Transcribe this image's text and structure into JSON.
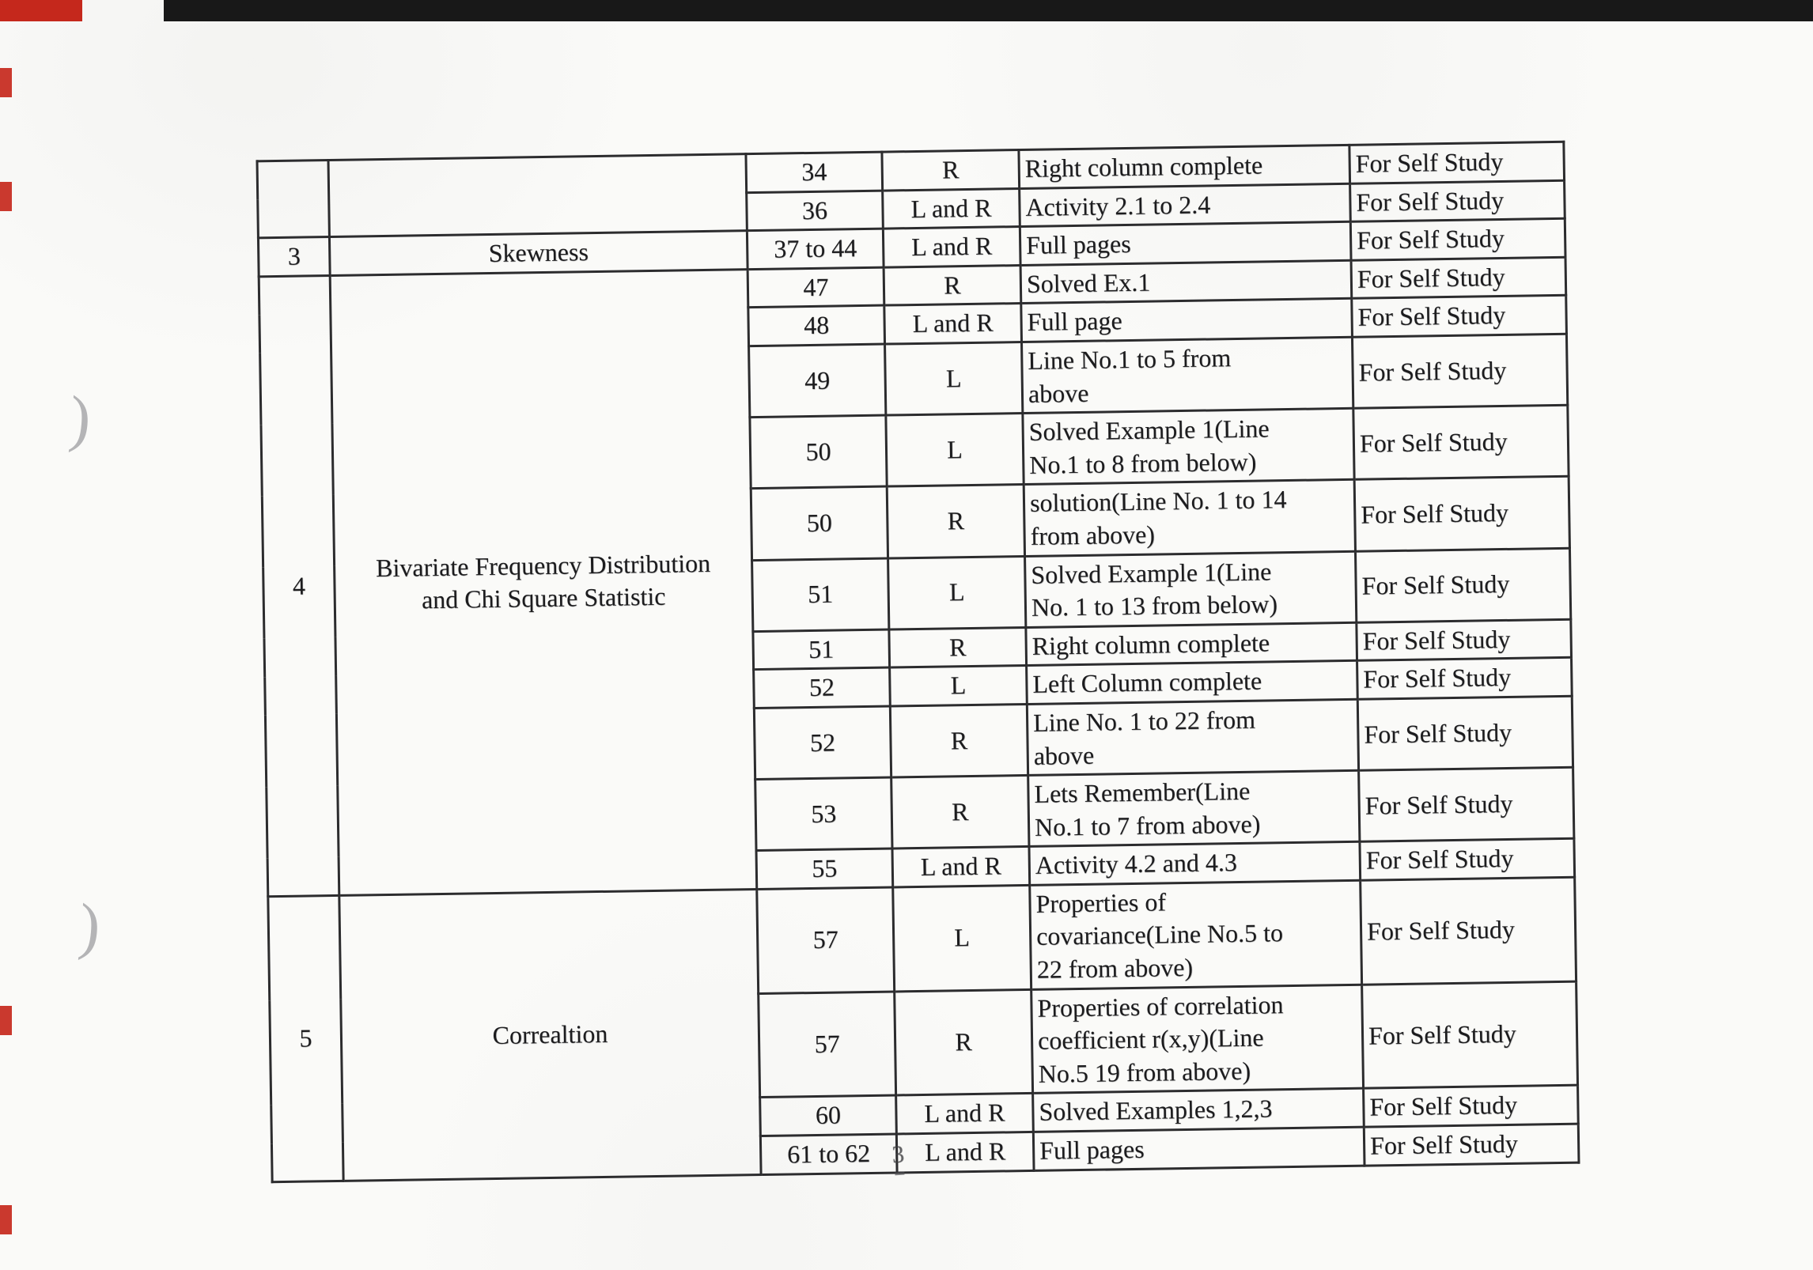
{
  "artifacts": {
    "top_bar_color": "#181818",
    "red_mark_color": "#c5281c",
    "paren_glyph": ")",
    "page_number": "3"
  },
  "table": {
    "columns": [
      "sr_no",
      "topic",
      "page_no",
      "side",
      "portion",
      "remark"
    ],
    "sections": [
      {
        "sr": "",
        "topic": "",
        "rows": [
          {
            "page": "34",
            "side": "R",
            "desc": "Right column complete",
            "remark": "For Self Study"
          },
          {
            "page": "36",
            "side": "L and R",
            "desc": "Activity 2.1 to 2.4",
            "remark": "For Self Study"
          }
        ]
      },
      {
        "sr": "3",
        "topic": "Skewness",
        "rows": [
          {
            "page": "37 to 44",
            "side": "L and R",
            "desc": "Full pages",
            "remark": "For Self Study"
          }
        ]
      },
      {
        "sr": "4",
        "topic": "Bivariate Frequency Distribution\nand Chi Square Statistic",
        "rows": [
          {
            "page": "47",
            "side": "R",
            "desc": "Solved Ex.1",
            "remark": "For Self Study"
          },
          {
            "page": "48",
            "side": "L and R",
            "desc": "Full page",
            "remark": "For Self Study"
          },
          {
            "page": "49",
            "side": "L",
            "desc": "Line No.1 to 5 from\nabove",
            "remark": "For Self Study"
          },
          {
            "page": "50",
            "side": "L",
            "desc": "Solved Example 1(Line\nNo.1 to 8 from below)",
            "remark": "For Self Study"
          },
          {
            "page": "50",
            "side": "R",
            "desc": "solution(Line No. 1 to 14\nfrom above)",
            "remark": "For Self Study"
          },
          {
            "page": "51",
            "side": "L",
            "desc": "Solved Example 1(Line\nNo. 1 to 13 from below)",
            "remark": "For Self Study"
          },
          {
            "page": "51",
            "side": "R",
            "desc": "Right column complete",
            "remark": "For Self Study"
          },
          {
            "page": "52",
            "side": "L",
            "desc": "Left Column  complete",
            "remark": "For Self Study"
          },
          {
            "page": "52",
            "side": "R",
            "desc": "Line No. 1 to 22 from\nabove",
            "remark": "For Self Study"
          },
          {
            "page": "53",
            "side": "R",
            "desc": "Lets Remember(Line\nNo.1 to 7 from above)",
            "remark": "For Self Study"
          },
          {
            "page": "55",
            "side": "L and R",
            "desc": "Activity 4.2 and 4.3",
            "remark": "For Self Study"
          }
        ]
      },
      {
        "sr": "5",
        "topic": "Correaltion",
        "rows": [
          {
            "page": "57",
            "side": "L",
            "desc": "Properties of\ncovariance(Line No.5 to\n22 from above)",
            "remark": "For Self Study"
          },
          {
            "page": "57",
            "side": "R",
            "desc": "Properties of correlation\ncoefficient r(x,y)(Line\nNo.5 19 from above)",
            "remark": "For Self Study"
          },
          {
            "page": "60",
            "side": "L and R",
            "desc": "Solved Examples 1,2,3",
            "remark": "For Self Study"
          },
          {
            "page": "61 to 62",
            "side": "L and R",
            "desc": "Full pages",
            "remark": "For Self Study"
          }
        ]
      }
    ]
  }
}
